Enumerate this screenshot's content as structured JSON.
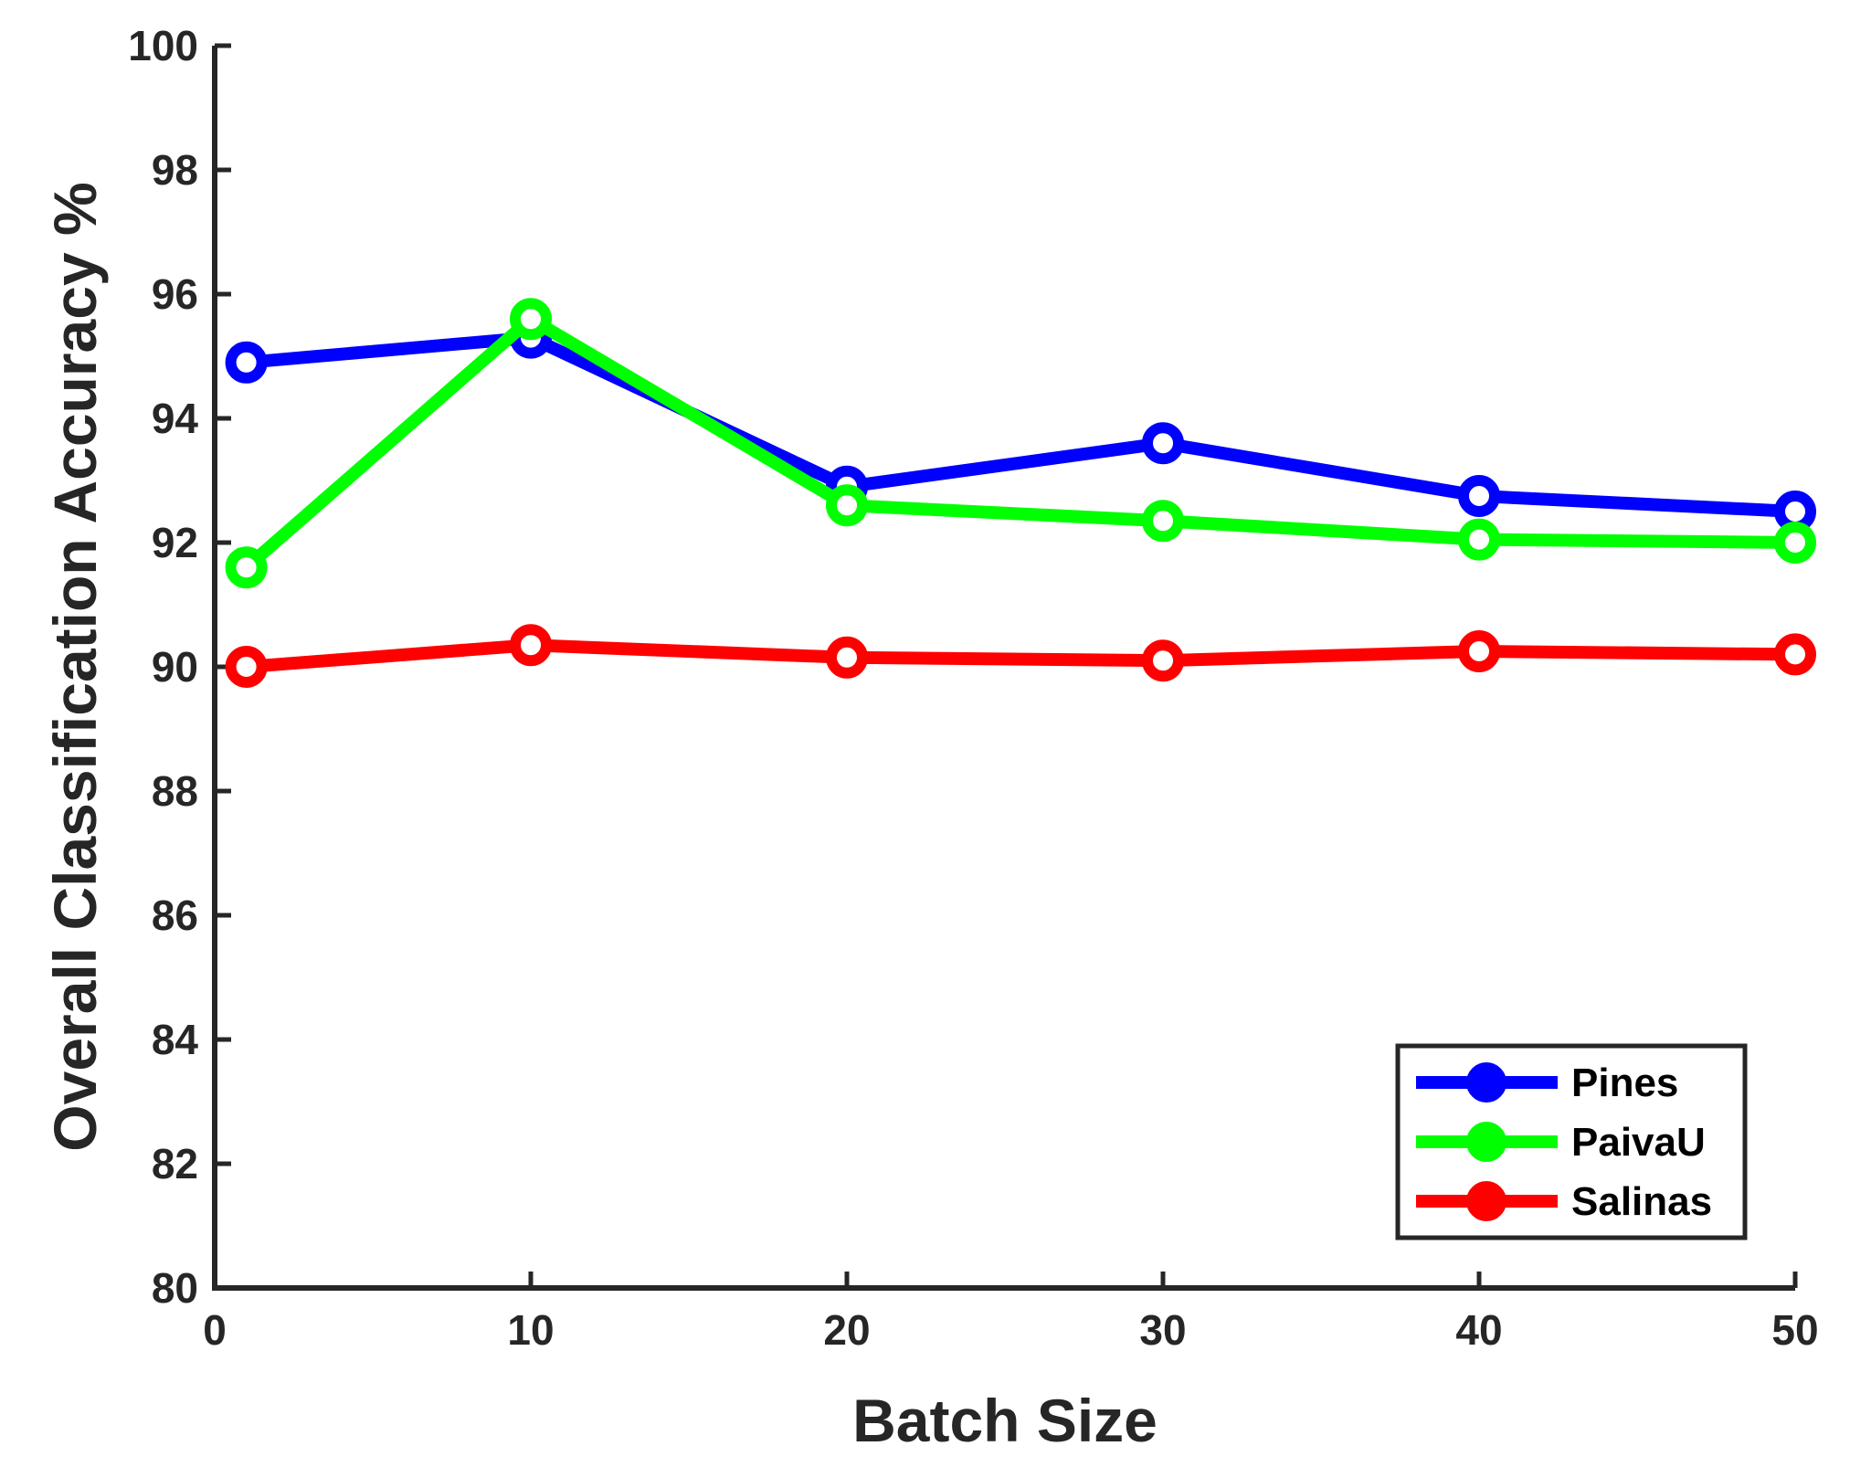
{
  "chart_data": {
    "type": "line",
    "title": "",
    "xlabel": "Batch Size",
    "ylabel": "Overall Classification Accuracy %",
    "xlim": [
      0,
      50
    ],
    "ylim": [
      80,
      100
    ],
    "xticks": [
      0,
      10,
      20,
      30,
      40,
      50
    ],
    "yticks": [
      80,
      82,
      84,
      86,
      88,
      90,
      92,
      94,
      96,
      98,
      100
    ],
    "x": [
      1,
      10,
      20,
      30,
      40,
      50
    ],
    "grid": false,
    "legend_position": "bottom-right",
    "series": [
      {
        "name": "Pines",
        "color": "#0000ff",
        "values": [
          94.9,
          95.3,
          92.9,
          93.6,
          92.75,
          92.5
        ]
      },
      {
        "name": "PaivaU",
        "color": "#00ff00",
        "values": [
          91.6,
          95.6,
          92.6,
          92.35,
          92.05,
          92.0
        ]
      },
      {
        "name": "Salinas",
        "color": "#ff0000",
        "values": [
          90.0,
          90.35,
          90.15,
          90.1,
          90.25,
          90.2
        ]
      }
    ]
  }
}
